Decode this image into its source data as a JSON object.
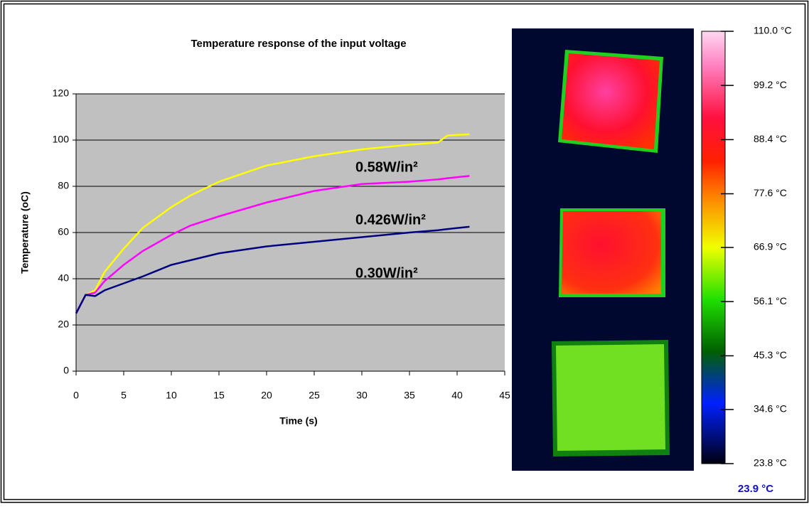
{
  "chart_data": {
    "type": "line",
    "title": "Temperature response of the input voltage",
    "x_label": "Time (s)",
    "y_label": "Temperature (oC)",
    "x": [
      0,
      1,
      2,
      3,
      5,
      7,
      10,
      12,
      15,
      20,
      25,
      30,
      35,
      38,
      39,
      41.3
    ],
    "series": [
      {
        "name": "0.58W/in²",
        "color": "#ffff00",
        "values": [
          25,
          33,
          35,
          43,
          53,
          62,
          71,
          76,
          82,
          89,
          93,
          96,
          98,
          99,
          102,
          102.5
        ]
      },
      {
        "name": "0.426W/in²",
        "color": "#ff00ff",
        "values": [
          25,
          33,
          34,
          39,
          46,
          52,
          59,
          63,
          67,
          73,
          78,
          81,
          82,
          83,
          83.5,
          84.5
        ]
      },
      {
        "name": "0.30W/in²",
        "color": "#000080",
        "values": [
          25,
          33,
          32.5,
          35,
          38,
          41,
          46,
          48,
          51,
          54,
          56,
          58,
          60,
          61,
          61.5,
          62.5
        ]
      }
    ],
    "xlim": [
      0,
      45
    ],
    "xticks": [
      0,
      5,
      10,
      15,
      20,
      25,
      30,
      35,
      40,
      45
    ],
    "ylim": [
      0,
      120
    ],
    "yticks": [
      0,
      20,
      40,
      60,
      80,
      100,
      120
    ],
    "grid": true
  },
  "thermal_scale": {
    "clim": [
      23.8,
      110.0
    ],
    "ticks": [
      {
        "value": 110.0,
        "label": "110.0 °C"
      },
      {
        "value": 99.2,
        "label": "99.2 °C"
      },
      {
        "value": 88.4,
        "label": "88.4 °C"
      },
      {
        "value": 77.6,
        "label": "77.6 °C"
      },
      {
        "value": 66.9,
        "label": "66.9 °C"
      },
      {
        "value": 56.1,
        "label": "56.1 °C"
      },
      {
        "value": 45.3,
        "label": "45.3 °C"
      },
      {
        "value": 34.6,
        "label": "34.6 °C"
      },
      {
        "value": 23.8,
        "label": "23.8 °C"
      }
    ],
    "reading": "23.9 °C"
  }
}
